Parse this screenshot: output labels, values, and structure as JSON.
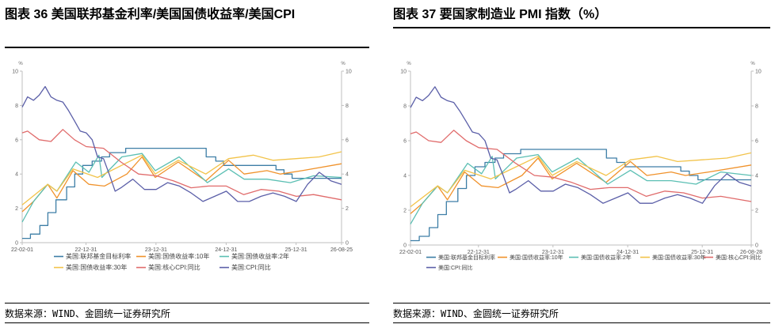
{
  "panels": [
    {
      "figure_title": "图表 36  美国联邦基金利率/美国国债收益率/美国CPI",
      "source": "数据来源：WIND、金圆统一证券研究所"
    },
    {
      "figure_title": "图表 37  要国家制造业 PMI 指数（%）",
      "source": "数据来源：WIND、金圆统一证券研究所"
    }
  ],
  "chart_data": [
    {
      "type": "line",
      "title": "图表 36  美国联邦基金利率/美国国债收益率/美国CPI",
      "ylabel_left": "%",
      "ylabel_right": "%",
      "ylim": [
        0,
        10
      ],
      "yticks": [
        "0",
        "2",
        "4",
        "6",
        "8",
        "10"
      ],
      "xlim": [
        "2022-02-01",
        "2026-08-25"
      ],
      "xticks": [
        "22-02-01",
        "22-12-31",
        "23-12-31",
        "24-12-31",
        "25-12-31",
        "26-08-25"
      ],
      "legend_position": "bottom",
      "grid": false,
      "series": [
        {
          "name": "美国:联邦基金目标利率",
          "color": "#3d7ea6",
          "x": [
            "2022-02-01",
            "2022-03-16",
            "2022-05-04",
            "2022-06-15",
            "2022-07-27",
            "2022-09-21",
            "2022-11-02",
            "2022-12-14",
            "2023-02-01",
            "2023-03-22",
            "2023-05-03",
            "2023-07-26",
            "2024-09-18",
            "2024-11-07",
            "2024-12-18",
            "2025-09-17",
            "2025-10-29",
            "2025-12-10",
            "2026-08-25"
          ],
          "values": [
            0.25,
            0.5,
            1.0,
            1.75,
            2.5,
            3.25,
            4.0,
            4.5,
            4.75,
            5.0,
            5.25,
            5.5,
            5.0,
            4.75,
            4.5,
            4.25,
            4.0,
            3.75,
            3.75
          ]
        },
        {
          "name": "美国:国债收益率:10年",
          "color": "#f0922b",
          "x": [
            "2022-02-01",
            "2022-04-01",
            "2022-06-14",
            "2022-08-01",
            "2022-10-24",
            "2023-01-15",
            "2023-04-06",
            "2023-08-01",
            "2023-10-19",
            "2023-12-27",
            "2024-04-25",
            "2024-09-16",
            "2025-01-13",
            "2025-04-04",
            "2025-08-01",
            "2025-10-10",
            "2026-02-01",
            "2026-08-25"
          ],
          "values": [
            1.8,
            2.4,
            3.4,
            2.6,
            4.2,
            3.4,
            3.3,
            4.0,
            5.0,
            3.8,
            4.7,
            3.6,
            4.8,
            4.0,
            4.2,
            4.0,
            4.2,
            4.6
          ]
        },
        {
          "name": "美国:国债收益率:2年",
          "color": "#5bbfb3",
          "x": [
            "2022-02-01",
            "2022-04-01",
            "2022-06-14",
            "2022-08-01",
            "2022-11-08",
            "2023-01-15",
            "2023-03-08",
            "2023-03-24",
            "2023-07-06",
            "2023-10-19",
            "2023-12-27",
            "2024-04-30",
            "2024-09-24",
            "2025-01-13",
            "2025-04-04",
            "2025-08-01",
            "2025-12-01",
            "2026-04-01",
            "2026-08-25"
          ],
          "values": [
            1.2,
            2.4,
            3.4,
            3.0,
            4.7,
            4.1,
            5.1,
            3.8,
            5.0,
            5.2,
            4.2,
            5.0,
            3.5,
            4.3,
            3.7,
            3.7,
            3.5,
            3.9,
            3.8
          ]
        },
        {
          "name": "美国:国债收益率:30年",
          "color": "#f2c34a",
          "x": [
            "2022-02-01",
            "2022-06-14",
            "2022-08-01",
            "2022-10-24",
            "2023-03-01",
            "2023-10-19",
            "2023-12-27",
            "2024-04-25",
            "2024-09-16",
            "2025-01-13",
            "2025-05-22",
            "2025-09-01",
            "2026-01-01",
            "2026-05-01",
            "2026-08-25"
          ],
          "values": [
            2.2,
            3.4,
            3.0,
            4.3,
            3.8,
            5.1,
            4.0,
            4.8,
            4.0,
            4.9,
            5.1,
            4.8,
            4.9,
            5.0,
            5.3
          ]
        },
        {
          "name": "美国:核心CPI:同比",
          "color": "#e06b6b",
          "x": [
            "2022-02-01",
            "2022-03-01",
            "2022-05-01",
            "2022-07-01",
            "2022-09-01",
            "2022-11-01",
            "2023-01-01",
            "2023-04-01",
            "2023-07-01",
            "2023-10-01",
            "2024-01-01",
            "2024-04-01",
            "2024-07-01",
            "2024-10-01",
            "2025-01-01",
            "2025-04-01",
            "2025-07-01",
            "2025-10-01",
            "2026-01-01",
            "2026-04-01",
            "2026-08-25"
          ],
          "values": [
            6.4,
            6.5,
            6.0,
            5.9,
            6.6,
            6.0,
            5.6,
            5.5,
            4.7,
            4.0,
            3.9,
            3.6,
            3.2,
            3.3,
            3.3,
            2.8,
            3.1,
            3.0,
            2.7,
            2.8,
            2.5
          ]
        },
        {
          "name": "美国:CPI:同比",
          "color": "#5b5fa8",
          "x": [
            "2022-02-01",
            "2022-03-01",
            "2022-04-01",
            "2022-05-01",
            "2022-06-01",
            "2022-07-01",
            "2022-08-01",
            "2022-09-01",
            "2022-10-01",
            "2022-11-01",
            "2022-12-01",
            "2023-01-01",
            "2023-02-01",
            "2023-03-01",
            "2023-04-01",
            "2023-05-01",
            "2023-06-01",
            "2023-07-01",
            "2023-09-01",
            "2023-11-01",
            "2024-01-01",
            "2024-03-01",
            "2024-05-01",
            "2024-07-01",
            "2024-09-01",
            "2024-11-01",
            "2025-01-01",
            "2025-03-01",
            "2025-05-01",
            "2025-07-01",
            "2025-09-01",
            "2025-11-01",
            "2026-01-01",
            "2026-03-01",
            "2026-05-01",
            "2026-07-01",
            "2026-08-25"
          ],
          "values": [
            7.9,
            8.5,
            8.3,
            8.6,
            9.1,
            8.5,
            8.3,
            8.2,
            7.7,
            7.1,
            6.5,
            6.4,
            6.0,
            5.0,
            4.9,
            4.0,
            3.0,
            3.2,
            3.7,
            3.1,
            3.1,
            3.5,
            3.3,
            2.9,
            2.4,
            2.7,
            3.0,
            2.4,
            2.4,
            2.7,
            2.9,
            2.7,
            2.4,
            3.4,
            4.1,
            3.6,
            3.4
          ]
        }
      ]
    },
    {
      "type": "line",
      "title": "图表 37  要国家制造业 PMI 指数（%）",
      "ylabel_left": "%",
      "ylabel_right": "%",
      "ylim": [
        0,
        10
      ],
      "yticks": [
        "0",
        "2",
        "4",
        "6",
        "8",
        "10"
      ],
      "xlim": [
        "2022-02-01",
        "2026-08-28"
      ],
      "xticks": [
        "22-02-01",
        "22-12-31",
        "23-12-31",
        "24-12-31",
        "25-12-31",
        "26-08-28"
      ],
      "legend_position": "bottom",
      "grid": false,
      "series": [
        {
          "name": "美国:联邦基金目标利率",
          "color": "#3d7ea6",
          "x": [
            "2022-02-01",
            "2022-03-16",
            "2022-05-04",
            "2022-06-15",
            "2022-07-27",
            "2022-09-21",
            "2022-11-02",
            "2022-12-14",
            "2023-02-01",
            "2023-03-22",
            "2023-05-03",
            "2023-07-26",
            "2024-09-18",
            "2024-11-07",
            "2024-12-18",
            "2025-09-17",
            "2025-10-29",
            "2025-12-10",
            "2026-08-28"
          ],
          "values": [
            0.25,
            0.5,
            1.0,
            1.75,
            2.5,
            3.25,
            4.0,
            4.5,
            4.75,
            5.0,
            5.25,
            5.5,
            5.0,
            4.75,
            4.5,
            4.25,
            4.0,
            3.75,
            3.75
          ]
        },
        {
          "name": "美国:国债收益率:10年",
          "color": "#f0922b",
          "x": [
            "2022-02-01",
            "2022-04-01",
            "2022-06-14",
            "2022-08-01",
            "2022-10-24",
            "2023-01-15",
            "2023-04-06",
            "2023-08-01",
            "2023-10-19",
            "2023-12-27",
            "2024-04-25",
            "2024-09-16",
            "2025-01-13",
            "2025-04-04",
            "2025-08-01",
            "2025-10-10",
            "2026-02-01",
            "2026-08-28"
          ],
          "values": [
            1.8,
            2.4,
            3.4,
            2.6,
            4.2,
            3.4,
            3.3,
            4.0,
            5.0,
            3.8,
            4.7,
            3.6,
            4.8,
            4.0,
            4.2,
            4.0,
            4.2,
            4.6
          ]
        },
        {
          "name": "美国:国债收益率:2年",
          "color": "#5bbfb3",
          "x": [
            "2022-02-01",
            "2022-04-01",
            "2022-06-14",
            "2022-08-01",
            "2022-11-08",
            "2023-01-15",
            "2023-03-08",
            "2023-03-24",
            "2023-07-06",
            "2023-10-19",
            "2023-12-27",
            "2024-04-30",
            "2024-09-24",
            "2025-01-13",
            "2025-04-04",
            "2025-08-01",
            "2025-12-01",
            "2026-04-01",
            "2026-08-28"
          ],
          "values": [
            1.2,
            2.4,
            3.4,
            3.0,
            4.7,
            4.1,
            5.1,
            3.8,
            5.0,
            5.2,
            4.2,
            5.0,
            3.5,
            4.3,
            3.7,
            3.7,
            3.5,
            4.2,
            4.0
          ]
        },
        {
          "name": "美国:国债收益率:30年",
          "color": "#f2c34a",
          "x": [
            "2022-02-01",
            "2022-06-14",
            "2022-08-01",
            "2022-10-24",
            "2023-03-01",
            "2023-10-19",
            "2023-12-27",
            "2024-04-25",
            "2024-09-16",
            "2025-01-13",
            "2025-05-22",
            "2025-09-01",
            "2026-01-01",
            "2026-05-01",
            "2026-08-28"
          ],
          "values": [
            2.2,
            3.4,
            3.0,
            4.3,
            3.8,
            5.1,
            4.0,
            4.8,
            4.0,
            4.9,
            5.1,
            4.8,
            4.9,
            5.0,
            5.3
          ]
        },
        {
          "name": "美国:核心CPI:同比",
          "color": "#e06b6b",
          "x": [
            "2022-02-01",
            "2022-03-01",
            "2022-05-01",
            "2022-07-01",
            "2022-09-01",
            "2022-11-01",
            "2023-01-01",
            "2023-04-01",
            "2023-07-01",
            "2023-10-01",
            "2024-01-01",
            "2024-04-01",
            "2024-07-01",
            "2024-10-01",
            "2025-01-01",
            "2025-04-01",
            "2025-07-01",
            "2025-10-01",
            "2026-01-01",
            "2026-04-01",
            "2026-08-28"
          ],
          "values": [
            6.4,
            6.5,
            6.0,
            5.9,
            6.6,
            6.0,
            5.6,
            5.5,
            4.7,
            4.0,
            3.9,
            3.6,
            3.2,
            3.3,
            3.3,
            2.8,
            3.1,
            3.0,
            2.7,
            2.8,
            2.5
          ]
        },
        {
          "name": "美国:CPI:同比",
          "color": "#5b5fa8",
          "x": [
            "2022-02-01",
            "2022-03-01",
            "2022-04-01",
            "2022-05-01",
            "2022-06-01",
            "2022-07-01",
            "2022-08-01",
            "2022-09-01",
            "2022-10-01",
            "2022-11-01",
            "2022-12-01",
            "2023-01-01",
            "2023-02-01",
            "2023-03-01",
            "2023-04-01",
            "2023-05-01",
            "2023-06-01",
            "2023-07-01",
            "2023-09-01",
            "2023-11-01",
            "2024-01-01",
            "2024-03-01",
            "2024-05-01",
            "2024-07-01",
            "2024-09-01",
            "2024-11-01",
            "2025-01-01",
            "2025-03-01",
            "2025-05-01",
            "2025-07-01",
            "2025-09-01",
            "2025-11-01",
            "2026-01-01",
            "2026-03-01",
            "2026-05-01",
            "2026-07-01",
            "2026-08-28"
          ],
          "values": [
            7.9,
            8.5,
            8.3,
            8.6,
            9.1,
            8.5,
            8.3,
            8.2,
            7.7,
            7.1,
            6.5,
            6.4,
            6.0,
            5.0,
            4.9,
            4.0,
            3.0,
            3.2,
            3.7,
            3.1,
            3.1,
            3.5,
            3.3,
            2.9,
            2.4,
            2.7,
            3.0,
            2.4,
            2.4,
            2.7,
            2.9,
            2.7,
            2.4,
            3.4,
            4.1,
            3.6,
            3.4
          ]
        }
      ]
    }
  ]
}
